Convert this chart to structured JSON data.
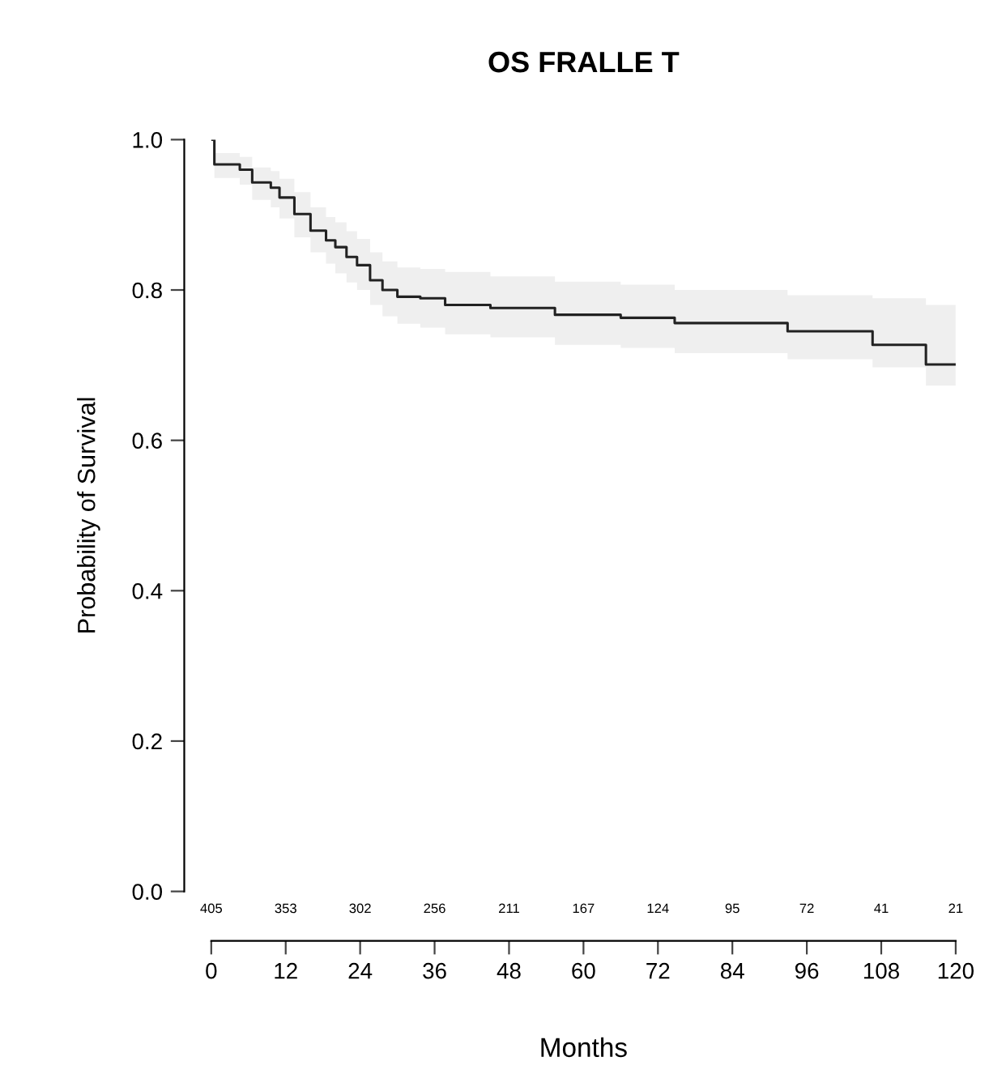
{
  "chart_data": {
    "type": "step",
    "title": "OS FRALLE T",
    "xlabel": "Months",
    "ylabel": "Probability of Survival",
    "xlim": [
      0,
      120
    ],
    "ylim": [
      0,
      1
    ],
    "xticks": [
      0,
      12,
      24,
      36,
      48,
      60,
      72,
      84,
      96,
      108,
      120
    ],
    "yticks": [
      {
        "value": 0,
        "label": "0.0"
      },
      {
        "value": 0.2,
        "label": "0.2"
      },
      {
        "value": 0.4,
        "label": "0.4"
      },
      {
        "value": 0.6,
        "label": "0.6"
      },
      {
        "value": 0.8,
        "label": "0.8"
      },
      {
        "value": 1,
        "label": "1.0"
      }
    ],
    "grid": false,
    "series": [
      {
        "color": "#222222",
        "x": [
          0,
          0.5,
          4.6,
          6.6,
          9.6,
          11,
          13.4,
          16,
          18.5,
          20,
          21.8,
          23.5,
          25.6,
          27.6,
          30,
          33.7,
          37.7,
          45,
          55.4,
          66,
          74.7,
          92.9,
          106.6,
          115.2,
          120
        ],
        "values": [
          1.0,
          0.967,
          0.96,
          0.943,
          0.936,
          0.923,
          0.901,
          0.879,
          0.866,
          0.857,
          0.844,
          0.833,
          0.813,
          0.8,
          0.791,
          0.789,
          0.78,
          0.776,
          0.767,
          0.763,
          0.756,
          0.745,
          0.727,
          0.701,
          0.701
        ],
        "lower": [
          1.0,
          0.949,
          0.94,
          0.92,
          0.91,
          0.895,
          0.87,
          0.85,
          0.835,
          0.822,
          0.81,
          0.8,
          0.78,
          0.765,
          0.755,
          0.75,
          0.741,
          0.737,
          0.727,
          0.723,
          0.716,
          0.708,
          0.697,
          0.673,
          0.629
        ],
        "upper": [
          1.0,
          0.982,
          0.977,
          0.963,
          0.958,
          0.948,
          0.93,
          0.91,
          0.897,
          0.89,
          0.878,
          0.868,
          0.85,
          0.838,
          0.83,
          0.828,
          0.824,
          0.818,
          0.811,
          0.807,
          0.8,
          0.793,
          0.789,
          0.78,
          0.78
        ]
      }
    ],
    "annotations": [
      "405",
      "353",
      "302",
      "256",
      "211",
      "167",
      "124",
      "95",
      "72",
      "41",
      "21"
    ]
  }
}
